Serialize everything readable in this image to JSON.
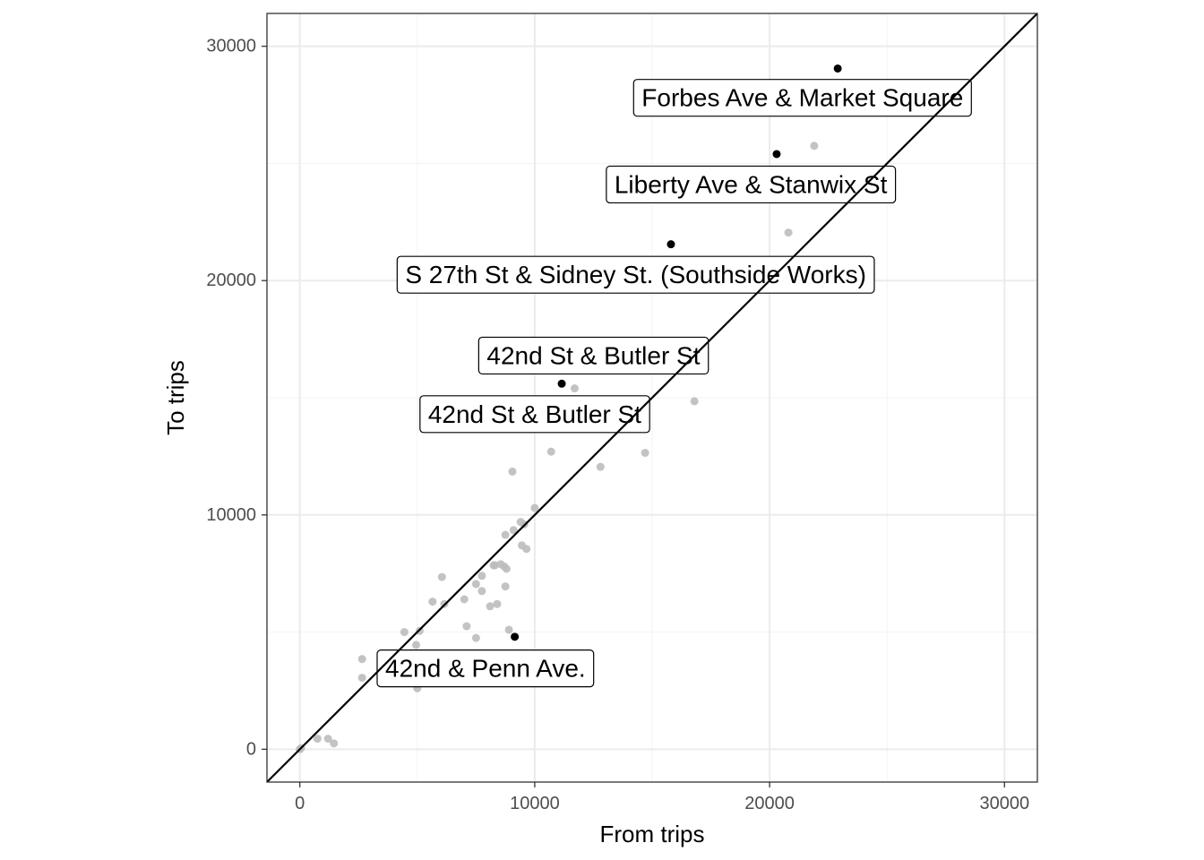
{
  "chart_data": {
    "type": "scatter",
    "title": "",
    "xlabel": "From trips",
    "ylabel": "To trips",
    "xlim": [
      -1400,
      31400
    ],
    "ylim": [
      -1400,
      31400
    ],
    "x_ticks": [
      0,
      10000,
      20000,
      30000
    ],
    "y_ticks": [
      0,
      10000,
      20000,
      30000
    ],
    "x_tick_labels": [
      "0",
      "10000",
      "20000",
      "30000"
    ],
    "y_tick_labels": [
      "0",
      "10000",
      "20000",
      "30000"
    ],
    "grid": true,
    "reference_line": "y = x",
    "colors": {
      "background_points": "#bdbdbd",
      "highlighted_points": "#000000",
      "grid_major": "#ebebeb",
      "grid_minor": "#f3f3f3",
      "line": "#000000"
    },
    "background_points": [
      {
        "x": 0,
        "y": 0
      },
      {
        "x": 50,
        "y": 50
      },
      {
        "x": 750,
        "y": 450
      },
      {
        "x": 1200,
        "y": 450
      },
      {
        "x": 1450,
        "y": 250
      },
      {
        "x": 2650,
        "y": 3850
      },
      {
        "x": 2650,
        "y": 3050
      },
      {
        "x": 4450,
        "y": 5000
      },
      {
        "x": 4950,
        "y": 4450
      },
      {
        "x": 5100,
        "y": 5050
      },
      {
        "x": 5000,
        "y": 2600
      },
      {
        "x": 5650,
        "y": 6300
      },
      {
        "x": 6050,
        "y": 7350
      },
      {
        "x": 6150,
        "y": 6200
      },
      {
        "x": 6650,
        "y": 2850
      },
      {
        "x": 7000,
        "y": 6400
      },
      {
        "x": 7100,
        "y": 5250
      },
      {
        "x": 7500,
        "y": 7050
      },
      {
        "x": 7500,
        "y": 4750
      },
      {
        "x": 7750,
        "y": 7400
      },
      {
        "x": 7750,
        "y": 6750
      },
      {
        "x": 8100,
        "y": 6100
      },
      {
        "x": 8250,
        "y": 7850
      },
      {
        "x": 8300,
        "y": 7850
      },
      {
        "x": 8400,
        "y": 6200
      },
      {
        "x": 8550,
        "y": 7900
      },
      {
        "x": 8700,
        "y": 7800
      },
      {
        "x": 8800,
        "y": 7700
      },
      {
        "x": 8750,
        "y": 6950
      },
      {
        "x": 8750,
        "y": 9150
      },
      {
        "x": 8900,
        "y": 5100
      },
      {
        "x": 9100,
        "y": 9350
      },
      {
        "x": 9050,
        "y": 11850
      },
      {
        "x": 9400,
        "y": 9700
      },
      {
        "x": 9450,
        "y": 8700
      },
      {
        "x": 9550,
        "y": 9600
      },
      {
        "x": 9650,
        "y": 8550
      },
      {
        "x": 10000,
        "y": 10300
      },
      {
        "x": 10700,
        "y": 12700
      },
      {
        "x": 11700,
        "y": 15400
      },
      {
        "x": 12800,
        "y": 12050
      },
      {
        "x": 14700,
        "y": 12650
      },
      {
        "x": 16800,
        "y": 14850
      },
      {
        "x": 20800,
        "y": 22050
      },
      {
        "x": 21900,
        "y": 25750
      }
    ],
    "highlighted_points": [
      {
        "x": 22900,
        "y": 29050,
        "label": "Forbes Ave & Market Square"
      },
      {
        "x": 20300,
        "y": 25400,
        "label": "Liberty Ave & Stanwix St"
      },
      {
        "x": 15800,
        "y": 21550,
        "label": "S 27th St & Sidney St. (Southside Works)"
      },
      {
        "x": 11150,
        "y": 15600,
        "label": "42nd St & Butler St"
      },
      {
        "x": 9150,
        "y": 4800,
        "label": "42nd & Penn Ave."
      }
    ],
    "annotations": [
      {
        "text": "Forbes Ave & Market Square",
        "x": 21400,
        "y": 27800
      },
      {
        "text": "Liberty Ave & Stanwix St",
        "x": 19200,
        "y": 24100
      },
      {
        "text": "S 27th St & Sidney St. (Southside Works)",
        "x": 14300,
        "y": 20250
      },
      {
        "text": "42nd St & Butler St",
        "x": 12500,
        "y": 16800
      },
      {
        "text": "42nd St & Butler St",
        "x": 10000,
        "y": 14300
      },
      {
        "text": "42nd & Penn Ave.",
        "x": 7900,
        "y": 3450
      }
    ]
  }
}
